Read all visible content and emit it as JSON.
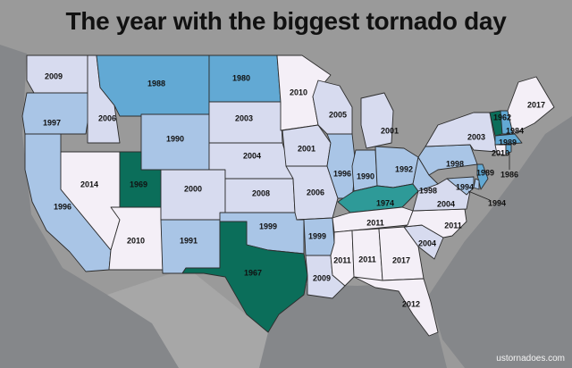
{
  "title": "The year with the biggest tornado day",
  "credit": "ustornadoes.com",
  "colors": {
    "background": "#8f8f8f",
    "land": "#a3a3a3",
    "water": "#7f8184",
    "bin_1960s": "#0b6e5a",
    "bin_1970s": "#2e9a98",
    "bin_1980s": "#62a9d4",
    "bin_1990s": "#a9c5e6",
    "bin_2000s": "#d7dbef",
    "bin_2010s": "#f4eff7"
  },
  "states": [
    {
      "id": "WA",
      "year": "2009"
    },
    {
      "id": "OR",
      "year": "1997"
    },
    {
      "id": "CA",
      "year": "1996"
    },
    {
      "id": "ID",
      "year": "2006"
    },
    {
      "id": "NV",
      "year": "2014"
    },
    {
      "id": "MT",
      "year": "1988"
    },
    {
      "id": "WY",
      "year": "1990"
    },
    {
      "id": "UT",
      "year": "1969"
    },
    {
      "id": "AZ",
      "year": "2010"
    },
    {
      "id": "CO",
      "year": "2000"
    },
    {
      "id": "NM",
      "year": "1991"
    },
    {
      "id": "ND",
      "year": "1980"
    },
    {
      "id": "SD",
      "year": "2003"
    },
    {
      "id": "NE",
      "year": "2004"
    },
    {
      "id": "KS",
      "year": "2008"
    },
    {
      "id": "OK",
      "year": "1999"
    },
    {
      "id": "TX",
      "year": "1967"
    },
    {
      "id": "MN",
      "year": "2010"
    },
    {
      "id": "IA",
      "year": "2001"
    },
    {
      "id": "MO",
      "year": "2006"
    },
    {
      "id": "AR",
      "year": "1999"
    },
    {
      "id": "LA",
      "year": "2009"
    },
    {
      "id": "WI",
      "year": "2005"
    },
    {
      "id": "IL",
      "year": "1996"
    },
    {
      "id": "MI",
      "year": "2001"
    },
    {
      "id": "IN",
      "year": "1990"
    },
    {
      "id": "OH",
      "year": "1992"
    },
    {
      "id": "KY",
      "year": "1974"
    },
    {
      "id": "TN",
      "year": "2011"
    },
    {
      "id": "MS",
      "year": "2011"
    },
    {
      "id": "AL",
      "year": "2011"
    },
    {
      "id": "GA",
      "year": "2017"
    },
    {
      "id": "FL",
      "year": "2012"
    },
    {
      "id": "SC",
      "year": "2004"
    },
    {
      "id": "NC",
      "year": "2011"
    },
    {
      "id": "VA",
      "year": "2004"
    },
    {
      "id": "WV",
      "year": "1998"
    },
    {
      "id": "PA",
      "year": "1998"
    },
    {
      "id": "NY",
      "year": "2003"
    },
    {
      "id": "VT",
      "year": "1962"
    },
    {
      "id": "NH",
      "year": "1984"
    },
    {
      "id": "ME",
      "year": "2017"
    },
    {
      "id": "MA",
      "year": "1989"
    },
    {
      "id": "CT",
      "year": "2010"
    },
    {
      "id": "RI",
      "year": "1986"
    },
    {
      "id": "NJ",
      "year": "1989"
    },
    {
      "id": "DE",
      "year": "1994"
    },
    {
      "id": "MD",
      "year": "1994"
    }
  ]
}
